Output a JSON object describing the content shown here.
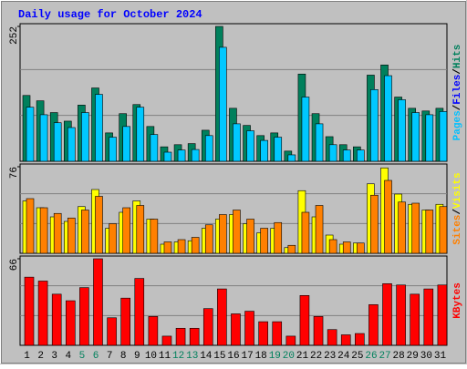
{
  "chart_data": [
    {
      "type": "bar",
      "title": "Daily usage for October 2024",
      "legend": [
        {
          "name": "Pages",
          "color": "#00c0ff"
        },
        {
          "name": "Files",
          "color": "#0000ff"
        },
        {
          "name": "Hits",
          "color": "#00805c"
        }
      ],
      "separator": "/",
      "series": [
        {
          "name": "Hits",
          "color": "#00805c",
          "values": [
            123,
            113,
            91,
            75,
            105,
            137,
            53,
            89,
            106,
            65,
            27,
            31,
            33,
            58,
            252,
            99,
            67,
            48,
            53,
            19,
            163,
            89,
            46,
            31,
            27,
            161,
            180,
            120,
            99,
            94,
            99
          ]
        },
        {
          "name": "Pages",
          "color": "#00c8ff",
          "values": [
            101,
            87,
            72,
            63,
            91,
            125,
            45,
            65,
            101,
            50,
            17,
            21,
            22,
            48,
            213,
            70,
            57,
            39,
            45,
            12,
            120,
            70,
            31,
            21,
            21,
            134,
            160,
            115,
            91,
            87,
            93
          ]
        }
      ],
      "ylim": [
        0,
        252
      ],
      "yticks": [
        252
      ],
      "grid_divisions": 3
    },
    {
      "type": "bar",
      "legend": [
        {
          "name": "Sites",
          "color": "#ff8000"
        },
        {
          "name": "Visits",
          "color": "#ffff00"
        }
      ],
      "separator": "/",
      "series": [
        {
          "name": "Visits",
          "color": "#ffff00",
          "values": [
            46,
            40,
            32,
            28,
            41,
            56,
            22,
            36,
            46,
            30,
            8,
            10,
            11,
            22,
            30,
            34,
            26,
            18,
            22,
            5,
            55,
            32,
            16,
            8,
            9,
            61,
            75,
            52,
            43,
            38,
            43
          ]
        },
        {
          "name": "Sites",
          "color": "#ff8000",
          "values": [
            48,
            40,
            35,
            31,
            38,
            50,
            26,
            40,
            42,
            30,
            10,
            12,
            14,
            25,
            34,
            38,
            30,
            22,
            27,
            7,
            36,
            42,
            12,
            10,
            9,
            51,
            64,
            45,
            44,
            38,
            41
          ]
        }
      ],
      "ylim": [
        0,
        76
      ],
      "yticks": [
        76
      ],
      "grid_divisions": 3
    },
    {
      "type": "bar",
      "legend": [
        {
          "name": "KBytes",
          "color": "#ff0000"
        }
      ],
      "series": [
        {
          "name": "KBytes",
          "color": "#ff0000",
          "values": [
            52,
            49,
            39,
            34,
            44,
            66,
            21,
            36,
            51,
            22,
            7,
            13,
            13,
            28,
            43,
            24,
            26,
            18,
            18,
            7,
            38,
            22,
            12,
            8,
            9,
            31,
            47,
            46,
            39,
            43,
            46
          ]
        }
      ],
      "categories": [
        "1",
        "2",
        "3",
        "4",
        "5",
        "6",
        "7",
        "8",
        "9",
        "10",
        "11",
        "12",
        "13",
        "14",
        "15",
        "16",
        "17",
        "18",
        "19",
        "20",
        "21",
        "22",
        "23",
        "24",
        "25",
        "26",
        "27",
        "28",
        "29",
        "30",
        "31"
      ],
      "weekend": [
        false,
        false,
        false,
        false,
        true,
        true,
        false,
        false,
        false,
        false,
        false,
        true,
        true,
        false,
        false,
        false,
        false,
        false,
        true,
        true,
        false,
        false,
        false,
        false,
        false,
        true,
        true,
        false,
        false,
        false,
        false
      ],
      "weekend_color": "#00805c",
      "ylim": [
        0,
        66
      ],
      "yticks": [
        66
      ],
      "grid_divisions": 3
    }
  ]
}
